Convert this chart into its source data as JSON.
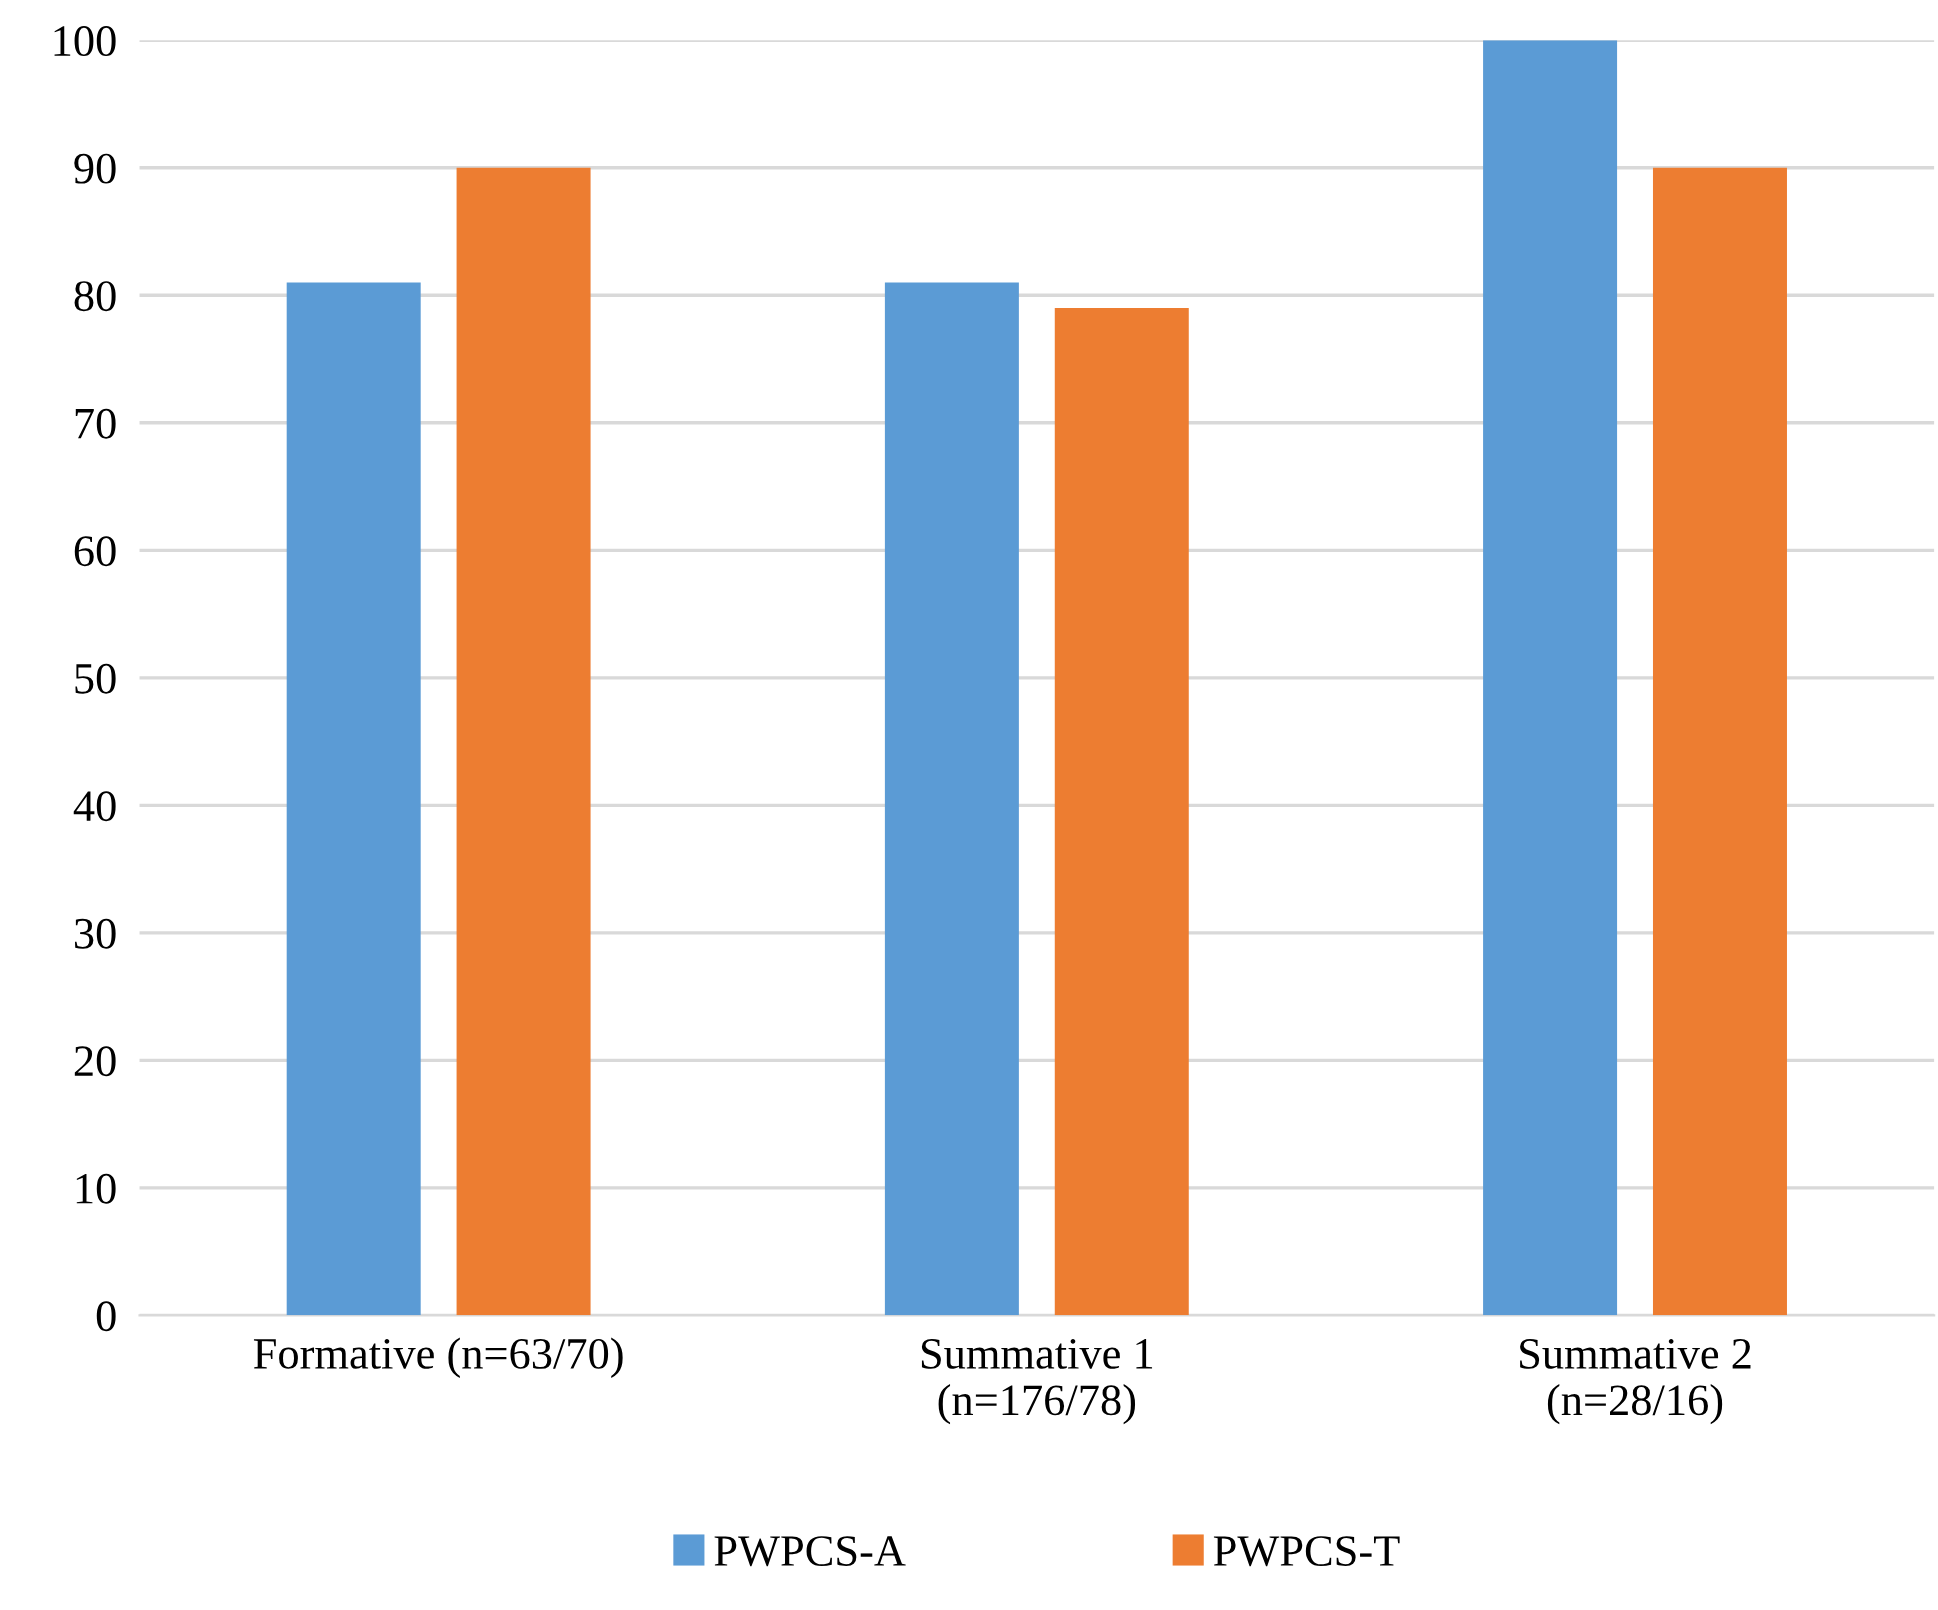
{
  "chart_data": {
    "type": "bar",
    "categories": [
      "Formative (n=63/70)",
      "Summative 1\n(n=176/78)",
      "Summative 2\n(n=28/16)"
    ],
    "series": [
      {
        "name": "PWPCS-A",
        "color": "#5b9bd5",
        "values": [
          81,
          81,
          100
        ]
      },
      {
        "name": "PWPCS-T",
        "color": "#ed7d31",
        "values": [
          90,
          79,
          90
        ]
      }
    ],
    "ylim": [
      0,
      100
    ],
    "yticks": [
      0,
      10,
      20,
      30,
      40,
      50,
      60,
      70,
      80,
      90,
      100
    ],
    "grid": "y",
    "legend": "bottom"
  }
}
